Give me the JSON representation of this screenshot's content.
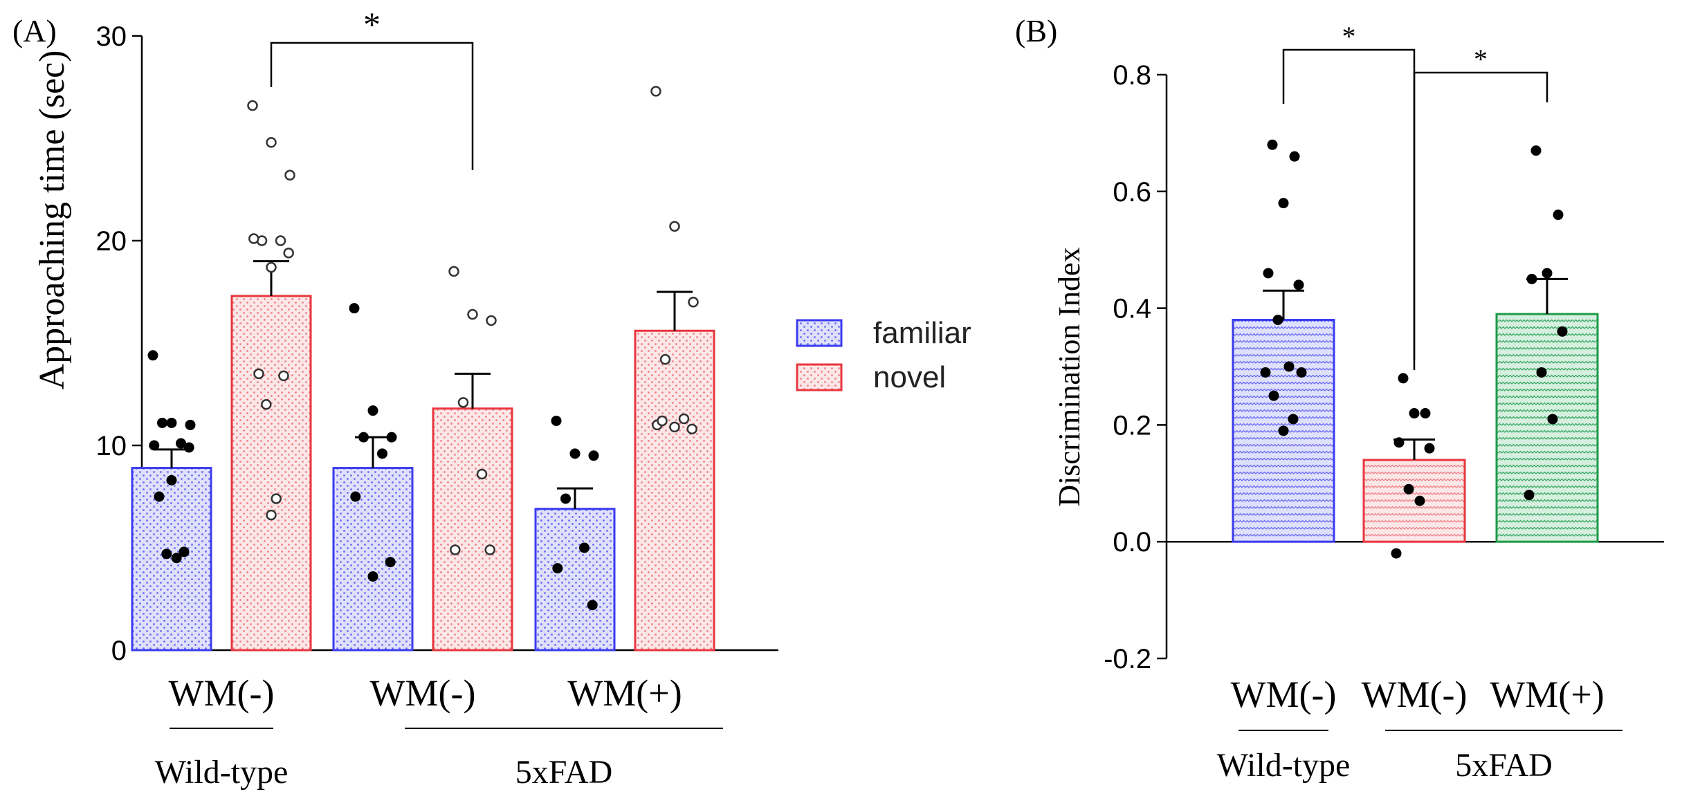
{
  "colors": {
    "familiar": "#3b3bf0",
    "novel": "#e8363e",
    "wm_plus_b": "#1e9a48",
    "familiar_fill": "#dfe0fb",
    "novel_fill": "#fbe1e2",
    "wm_plus_fill": "#d6efdf"
  },
  "legend": {
    "familiar": "familiar",
    "novel": "novel"
  },
  "chart_data": [
    {
      "panel": "(A)",
      "type": "bar",
      "ylabel": "Approaching time (sec)",
      "ylim": [
        0,
        30
      ],
      "yticks": [
        "0",
        "10",
        "20",
        "30"
      ],
      "categories": [
        "WM(-)",
        "WM(-)",
        "WM(+)"
      ],
      "groups": [
        {
          "label": "Wild-type",
          "categories": [
            0
          ]
        },
        {
          "label": "5xFAD",
          "categories": [
            1,
            2
          ]
        }
      ],
      "series": [
        {
          "name": "familiar",
          "values": [
            8.9,
            8.9,
            6.9
          ],
          "sem": [
            0.9,
            1.5,
            1.0
          ],
          "points": [
            [
              14.4,
              11.1,
              11.0,
              11.1,
              10.1,
              10.0,
              9.9,
              8.3,
              7.5,
              4.8,
              4.7,
              4.5
            ],
            [
              16.7,
              11.7,
              10.4,
              10.4,
              9.6,
              7.5,
              4.3,
              3.6
            ],
            [
              11.2,
              9.6,
              9.5,
              7.4,
              5.0,
              4.0,
              2.2
            ]
          ]
        },
        {
          "name": "novel",
          "values": [
            17.3,
            11.8,
            15.6
          ],
          "sem": [
            1.7,
            1.7,
            1.9
          ],
          "points": [
            [
              26.6,
              24.8,
              23.2,
              20.0,
              20.0,
              20.1,
              19.4,
              18.7,
              13.5,
              13.4,
              12.0,
              7.4,
              6.6
            ],
            [
              18.5,
              16.4,
              16.1,
              12.1,
              8.6,
              4.9,
              4.9
            ],
            [
              27.3,
              20.7,
              17.0,
              14.2,
              11.3,
              11.0,
              10.8,
              10.9,
              11.2
            ]
          ]
        }
      ],
      "significance": [
        {
          "from": "0:novel",
          "to": "1:novel",
          "label": "*"
        }
      ]
    },
    {
      "panel": "(B)",
      "type": "bar",
      "ylabel": "Discrimination Index",
      "ylim": [
        -0.2,
        0.8
      ],
      "yticks": [
        "-0.2",
        "0.0",
        "0.2",
        "0.4",
        "0.6",
        "0.8"
      ],
      "categories": [
        "WM(-)",
        "WM(-)",
        "WM(+)"
      ],
      "groups": [
        {
          "label": "Wild-type",
          "categories": [
            0
          ]
        },
        {
          "label": "5xFAD",
          "categories": [
            1,
            2
          ]
        }
      ],
      "values": [
        0.38,
        0.14,
        0.39
      ],
      "sem": [
        0.05,
        0.035,
        0.06
      ],
      "points": [
        [
          0.68,
          0.66,
          0.58,
          0.46,
          0.44,
          0.38,
          0.3,
          0.29,
          0.29,
          0.25,
          0.21,
          0.19
        ],
        [
          0.28,
          0.22,
          0.22,
          0.17,
          0.16,
          0.09,
          0.07,
          -0.02
        ],
        [
          0.67,
          0.56,
          0.46,
          0.45,
          0.36,
          0.29,
          0.21,
          0.08
        ]
      ],
      "significance": [
        {
          "from": 0,
          "to": 1,
          "label": "*"
        },
        {
          "from": 1,
          "to": 2,
          "label": "*"
        }
      ]
    }
  ]
}
